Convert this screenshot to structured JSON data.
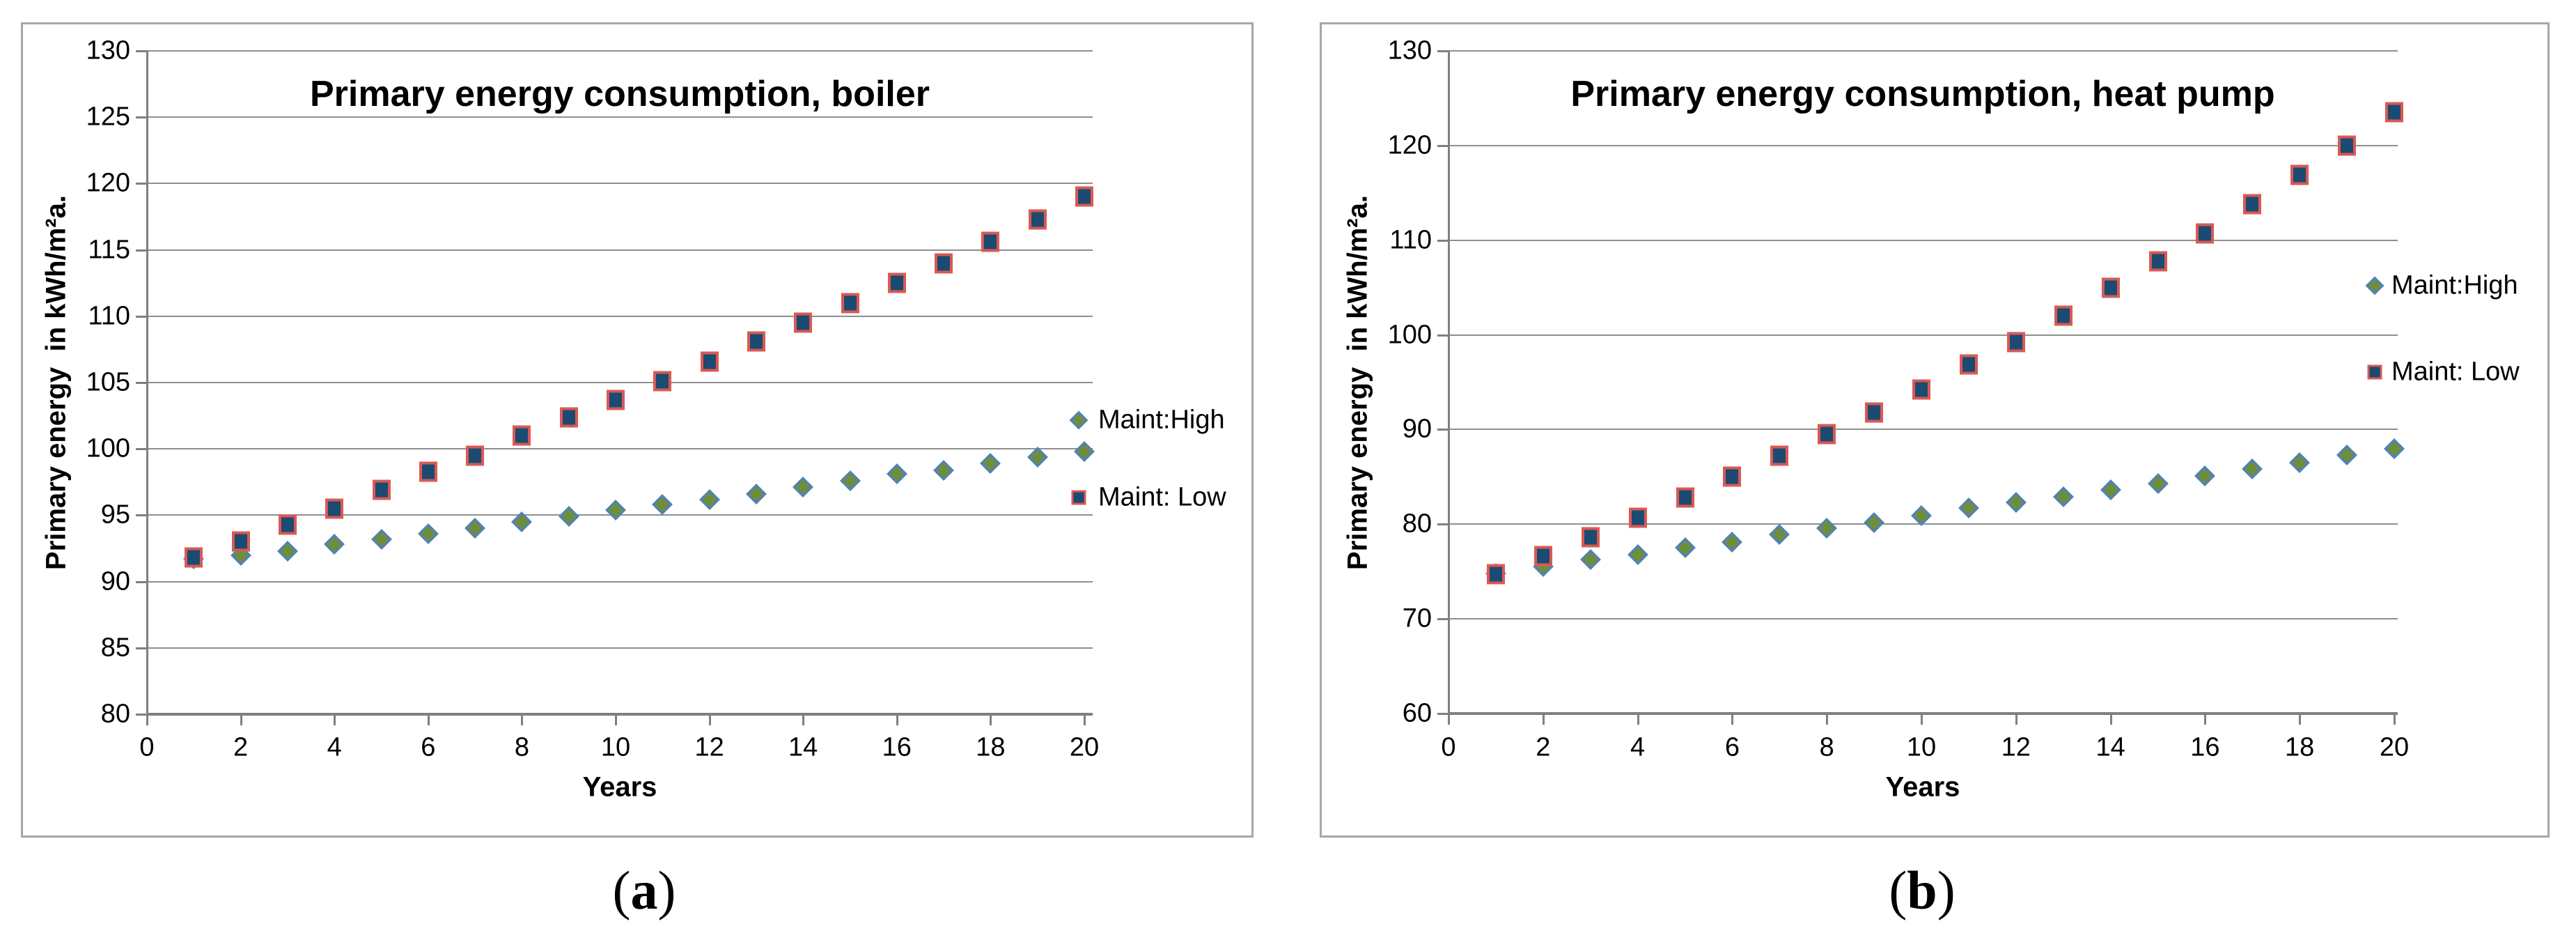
{
  "figure": {
    "captions": {
      "a": {
        "open": "(",
        "letter": "a",
        "close": ")"
      },
      "b": {
        "open": "(",
        "letter": "b",
        "close": ")"
      }
    }
  },
  "colors": {
    "maint_high_fill": "#6f8e3a",
    "maint_high_border": "#4f81bd",
    "maint_low_fill": "#1b4a73",
    "maint_low_border": "#da5953",
    "gridline": "#8f8f8f",
    "axis": "#7f7f7f",
    "panel_border": "#a6a6a6",
    "text": "#000000"
  },
  "chart_data": [
    {
      "type": "scatter",
      "title": "Primary energy consumption, boiler",
      "xlabel": "Years",
      "ylabel": "Primary energy  in kWh/m²a.",
      "x": [
        1,
        2,
        3,
        4,
        5,
        6,
        7,
        8,
        9,
        10,
        11,
        12,
        13,
        14,
        15,
        16,
        17,
        18,
        19,
        20
      ],
      "series": [
        {
          "name": "Maint:High",
          "marker": "diamond",
          "values": [
            91.7,
            92.0,
            92.3,
            92.8,
            93.2,
            93.6,
            94.0,
            94.5,
            94.9,
            95.4,
            95.8,
            96.2,
            96.6,
            97.1,
            97.6,
            98.1,
            98.4,
            98.9,
            99.4,
            99.8
          ]
        },
        {
          "name": "Maint: Low",
          "marker": "square",
          "values": [
            91.8,
            93.0,
            94.3,
            95.5,
            96.9,
            98.3,
            99.5,
            101.0,
            102.4,
            103.7,
            105.1,
            106.6,
            108.1,
            109.5,
            111.0,
            112.5,
            114.0,
            115.6,
            117.3,
            119.0
          ]
        }
      ],
      "xlim": [
        0,
        20
      ],
      "ylim": [
        80,
        130
      ],
      "xticks": [
        0,
        2,
        4,
        6,
        8,
        10,
        12,
        14,
        16,
        18,
        20
      ],
      "yticks": [
        80,
        85,
        90,
        95,
        100,
        105,
        110,
        115,
        120,
        125,
        130
      ],
      "grid": "horizontal",
      "legend_position": "right-inside",
      "legend_order": [
        "Maint:High",
        "Maint: Low"
      ]
    },
    {
      "type": "scatter",
      "title": "Primary energy consumption, heat pump",
      "xlabel": "Years",
      "ylabel": "Primary energy  in kWh/m²a.",
      "x": [
        1,
        2,
        3,
        4,
        5,
        6,
        7,
        8,
        9,
        10,
        11,
        12,
        13,
        14,
        15,
        16,
        17,
        18,
        19,
        20
      ],
      "series": [
        {
          "name": "Maint:High",
          "marker": "diamond",
          "values": [
            74.8,
            75.5,
            76.3,
            76.8,
            77.5,
            78.1,
            78.9,
            79.6,
            80.2,
            80.9,
            81.7,
            82.3,
            82.9,
            83.6,
            84.3,
            85.1,
            85.8,
            86.5,
            87.3,
            88.0
          ]
        },
        {
          "name": "Maint: Low",
          "marker": "square",
          "values": [
            74.7,
            76.6,
            78.6,
            80.7,
            82.8,
            85.0,
            87.2,
            89.5,
            91.8,
            94.2,
            96.9,
            99.2,
            102.0,
            105.0,
            107.8,
            110.7,
            113.8,
            116.9,
            120.0,
            123.5
          ]
        }
      ],
      "xlim": [
        0,
        20
      ],
      "ylim": [
        60,
        130
      ],
      "xticks": [
        0,
        2,
        4,
        6,
        8,
        10,
        12,
        14,
        16,
        18,
        20
      ],
      "yticks": [
        60,
        70,
        80,
        90,
        100,
        110,
        120,
        130
      ],
      "grid": "horizontal",
      "legend_position": "right-inside",
      "legend_order": [
        "Maint:High",
        "Maint: Low"
      ]
    }
  ]
}
